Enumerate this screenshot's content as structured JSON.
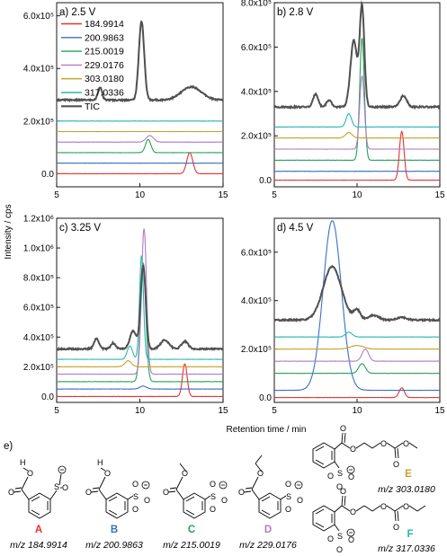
{
  "chart_data": [
    {
      "type": "line",
      "panel_label": "a) 2.5 V",
      "x_range": [
        5,
        15
      ],
      "x_ticks": [
        "5",
        "10",
        "15"
      ],
      "y_range": [
        -50000,
        650000
      ],
      "y_ticks": [
        {
          "value": 0,
          "label": "0.0"
        },
        {
          "value": 200000,
          "label": "2.0x10⁵"
        },
        {
          "value": 400000,
          "label": "4.0x10⁵"
        },
        {
          "value": 600000,
          "label": "6.0x10⁵"
        }
      ],
      "legend_position": "top-left",
      "series": [
        {
          "name": "184.9914",
          "color": "#e8312f",
          "offset": 0,
          "peaks": [
            [
              13.0,
              80000,
              0.18
            ]
          ]
        },
        {
          "name": "200.9863",
          "color": "#3a6fc4",
          "offset": 40000,
          "peaks": []
        },
        {
          "name": "215.0019",
          "color": "#2aa05a",
          "offset": 80000,
          "peaks": [
            [
              10.5,
              50000,
              0.16
            ]
          ]
        },
        {
          "name": "229.0176",
          "color": "#b07cc6",
          "offset": 120000,
          "peaks": [
            [
              10.6,
              25000,
              0.22
            ]
          ]
        },
        {
          "name": "303.0180",
          "color": "#c9a227",
          "offset": 160000,
          "peaks": []
        },
        {
          "name": "317.0336",
          "color": "#29b7b0",
          "offset": 200000,
          "peaks": []
        },
        {
          "name": "TIC",
          "color": "#505050",
          "offset": 280000,
          "peaks": [
            [
              7.6,
              50000,
              0.12
            ],
            [
              10.1,
              300000,
              0.16
            ],
            [
              13.1,
              50000,
              0.6
            ]
          ]
        }
      ]
    },
    {
      "type": "line",
      "panel_label": "b) 2.8 V",
      "x_range": [
        5,
        15
      ],
      "x_ticks": [
        "5",
        "10",
        "15"
      ],
      "y_range": [
        -30000,
        800000
      ],
      "y_ticks": [
        {
          "value": 0,
          "label": "0.0"
        },
        {
          "value": 200000,
          "label": "2.0x10⁵"
        },
        {
          "value": 400000,
          "label": "4.0x10⁵"
        },
        {
          "value": 600000,
          "label": "6.0x10⁵"
        },
        {
          "value": 800000,
          "label": "8.0x10⁵"
        }
      ],
      "series": [
        {
          "name": "184.9914",
          "color": "#e8312f",
          "offset": 0,
          "peaks": [
            [
              12.7,
              220000,
              0.14
            ]
          ]
        },
        {
          "name": "200.9863",
          "color": "#3a6fc4",
          "offset": 40000,
          "peaks": []
        },
        {
          "name": "215.0019",
          "color": "#2aa05a",
          "offset": 90000,
          "peaks": [
            [
              10.3,
              550000,
              0.14
            ]
          ]
        },
        {
          "name": "229.0176",
          "color": "#b07cc6",
          "offset": 140000,
          "peaks": [
            [
              10.3,
              330000,
              0.14
            ]
          ]
        },
        {
          "name": "303.0180",
          "color": "#c9a227",
          "offset": 190000,
          "peaks": [
            [
              9.5,
              25000,
              0.2
            ]
          ]
        },
        {
          "name": "317.0336",
          "color": "#29b7b0",
          "offset": 240000,
          "peaks": [
            [
              9.5,
              60000,
              0.16
            ]
          ]
        },
        {
          "name": "TIC",
          "color": "#505050",
          "offset": 330000,
          "peaks": [
            [
              7.5,
              60000,
              0.15
            ],
            [
              8.3,
              30000,
              0.15
            ],
            [
              9.8,
              300000,
              0.2
            ],
            [
              10.3,
              450000,
              0.14
            ],
            [
              12.8,
              50000,
              0.2
            ]
          ]
        }
      ]
    },
    {
      "type": "line",
      "panel_label": "c) 3.25 V",
      "x_range": [
        5,
        15
      ],
      "x_ticks": [
        "5",
        "10",
        "15"
      ],
      "y_range": [
        -40000,
        1200000
      ],
      "y_ticks": [
        {
          "value": 0,
          "label": "0.0"
        },
        {
          "value": 200000,
          "label": "2.0x10⁵"
        },
        {
          "value": 400000,
          "label": "4.0x10⁵"
        },
        {
          "value": 600000,
          "label": "6.0x10⁵"
        },
        {
          "value": 800000,
          "label": "8.0x10⁵"
        },
        {
          "value": 1000000,
          "label": "1.0x10⁶"
        },
        {
          "value": 1200000,
          "label": "1.2x10⁶"
        }
      ],
      "series": [
        {
          "name": "184.9914",
          "color": "#e8312f",
          "offset": 0,
          "peaks": [
            [
              12.7,
              220000,
              0.14
            ]
          ]
        },
        {
          "name": "200.9863",
          "color": "#3a6fc4",
          "offset": 50000,
          "peaks": [
            [
              10.2,
              20000,
              0.2
            ]
          ]
        },
        {
          "name": "215.0019",
          "color": "#2aa05a",
          "offset": 100000,
          "peaks": [
            [
              10.2,
              800000,
              0.16
            ]
          ]
        },
        {
          "name": "229.0176",
          "color": "#b07cc6",
          "offset": 150000,
          "peaks": [
            [
              10.25,
              980000,
              0.15
            ]
          ]
        },
        {
          "name": "303.0180",
          "color": "#c9a227",
          "offset": 200000,
          "peaks": [
            [
              9.3,
              40000,
              0.2
            ]
          ]
        },
        {
          "name": "317.0336",
          "color": "#29b7b0",
          "offset": 250000,
          "peaks": [
            [
              9.4,
              90000,
              0.16
            ],
            [
              10.1,
              700000,
              0.12
            ]
          ]
        },
        {
          "name": "TIC",
          "color": "#505050",
          "offset": 320000,
          "peaks": [
            [
              7.4,
              70000,
              0.15
            ],
            [
              8.4,
              40000,
              0.15
            ],
            [
              9.6,
              120000,
              0.2
            ],
            [
              10.2,
              560000,
              0.15
            ],
            [
              11.5,
              60000,
              0.25
            ],
            [
              12.7,
              50000,
              0.2
            ]
          ]
        }
      ]
    },
    {
      "type": "line",
      "panel_label": "d) 4.5 V",
      "x_range": [
        5,
        15
      ],
      "x_ticks": [
        "5",
        "10",
        "15"
      ],
      "y_range": [
        -20000,
        740000
      ],
      "y_ticks": [
        {
          "value": 0,
          "label": "0.0"
        },
        {
          "value": 200000,
          "label": "2.0x10⁵"
        },
        {
          "value": 400000,
          "label": "4.0x10⁵"
        },
        {
          "value": 600000,
          "label": "6.0x10⁵"
        }
      ],
      "series": [
        {
          "name": "184.9914",
          "color": "#e8312f",
          "offset": 0,
          "peaks": [
            [
              12.7,
              40000,
              0.16
            ]
          ]
        },
        {
          "name": "200.9863",
          "color": "#3a6fc4",
          "offset": 30000,
          "peaks": [
            [
              8.5,
              700000,
              0.55
            ]
          ]
        },
        {
          "name": "215.0019",
          "color": "#2aa05a",
          "offset": 100000,
          "peaks": [
            [
              10.3,
              40000,
              0.2
            ]
          ]
        },
        {
          "name": "229.0176",
          "color": "#b07cc6",
          "offset": 150000,
          "peaks": [
            [
              10.5,
              50000,
              0.2
            ]
          ]
        },
        {
          "name": "303.0180",
          "color": "#c9a227",
          "offset": 200000,
          "peaks": [
            [
              10.0,
              15000,
              0.4
            ]
          ]
        },
        {
          "name": "317.0336",
          "color": "#29b7b0",
          "offset": 250000,
          "peaks": [
            [
              9.5,
              20000,
              0.2
            ]
          ]
        },
        {
          "name": "TIC",
          "color": "#505050",
          "offset": 320000,
          "peaks": [
            [
              8.5,
              220000,
              0.55
            ],
            [
              10.0,
              40000,
              0.2
            ],
            [
              11.0,
              20000,
              0.3
            ],
            [
              12.7,
              10000,
              0.3
            ]
          ]
        }
      ]
    }
  ],
  "shared_axes": {
    "xlabel": "Retention time / min",
    "ylabel": "Intensity / cps"
  },
  "structures": {
    "section_label": "e)",
    "compounds": [
      {
        "letter": "A",
        "mz": "m/z 184.9914",
        "color": "#e8312f"
      },
      {
        "letter": "B",
        "mz": "m/z 200.9863",
        "color": "#3a6fc4"
      },
      {
        "letter": "C",
        "mz": "m/z 215.0019",
        "color": "#2aa05a"
      },
      {
        "letter": "D",
        "mz": "m/z 229.0176",
        "color": "#b07cc6"
      },
      {
        "letter": "E",
        "mz": "m/z 303.0180",
        "color": "#c9a227"
      },
      {
        "letter": "F",
        "mz": "m/z 317.0336",
        "color": "#29b7b0"
      }
    ]
  }
}
